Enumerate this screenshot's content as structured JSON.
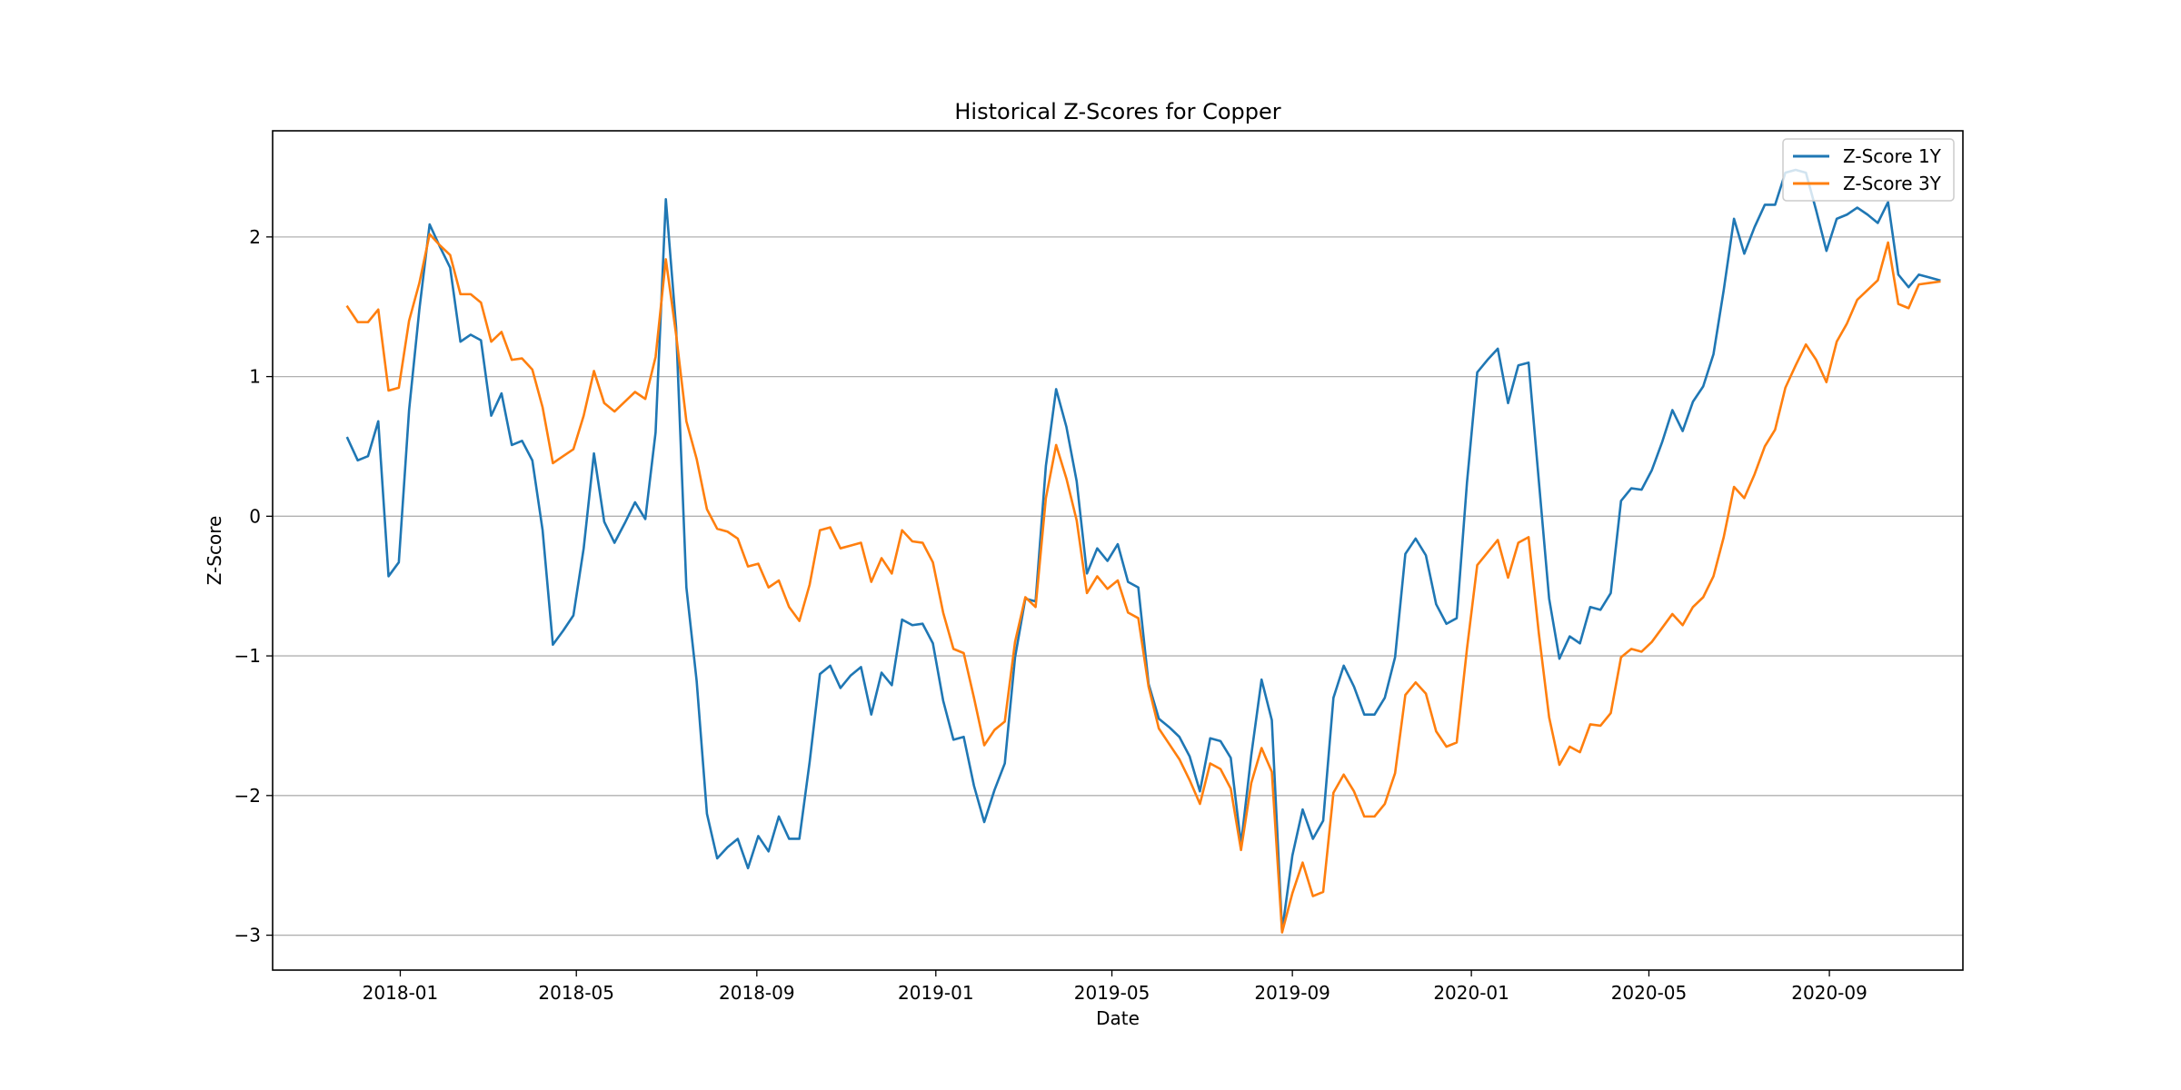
{
  "chart_data": {
    "type": "line",
    "title": "Historical Z-Scores for Copper",
    "xlabel": "Date",
    "ylabel": "Z-Score",
    "xlim": [
      "2017-10-06",
      "2020-12-01"
    ],
    "ylim": [
      -3.25,
      2.76
    ],
    "x_ticks": [
      "2018-01",
      "2018-05",
      "2018-09",
      "2019-01",
      "2019-05",
      "2019-09",
      "2020-01",
      "2020-05",
      "2020-09"
    ],
    "y_ticks": [
      "2",
      "1",
      "0",
      "−1",
      "−2",
      "−3"
    ],
    "y_tick_values": [
      2,
      1,
      0,
      -1,
      -2,
      -3
    ],
    "grid": "horizontal",
    "legend_position": "top-right",
    "x_start": "2017-11-26",
    "x_step_days": 7,
    "series": [
      {
        "name": "Z-Score 1Y",
        "color": "#1f77b4",
        "values": [
          0.56,
          0.4,
          0.43,
          0.68,
          -0.43,
          -0.33,
          0.76,
          1.48,
          2.09,
          1.93,
          1.78,
          1.25,
          1.3,
          1.26,
          0.72,
          0.88,
          0.51,
          0.54,
          0.4,
          -0.1,
          -0.92,
          -0.82,
          -0.71,
          -0.23,
          0.45,
          -0.04,
          -0.19,
          -0.05,
          0.1,
          -0.02,
          0.6,
          2.27,
          1.35,
          -0.51,
          -1.18,
          -2.13,
          -2.45,
          -2.37,
          -2.31,
          -2.52,
          -2.29,
          -2.4,
          -2.15,
          -2.31,
          -2.31,
          -1.76,
          -1.13,
          -1.07,
          -1.23,
          -1.14,
          -1.08,
          -1.42,
          -1.12,
          -1.21,
          -0.74,
          -0.78,
          -0.77,
          -0.91,
          -1.32,
          -1.6,
          -1.58,
          -1.93,
          -2.19,
          -1.96,
          -1.77,
          -1.01,
          -0.59,
          -0.61,
          0.36,
          0.91,
          0.64,
          0.25,
          -0.41,
          -0.23,
          -0.32,
          -0.2,
          -0.47,
          -0.51,
          -1.2,
          -1.45,
          -1.51,
          -1.58,
          -1.72,
          -1.97,
          -1.59,
          -1.61,
          -1.73,
          -2.35,
          -1.71,
          -1.17,
          -1.46,
          -2.97,
          -2.43,
          -2.1,
          -2.31,
          -2.18,
          -1.3,
          -1.07,
          -1.22,
          -1.42,
          -1.42,
          -1.3,
          -1.01,
          -0.27,
          -0.16,
          -0.28,
          -0.63,
          -0.77,
          -0.73,
          0.24,
          1.03,
          1.12,
          1.2,
          0.81,
          1.08,
          1.1,
          0.25,
          -0.59,
          -1.02,
          -0.86,
          -0.91,
          -0.65,
          -0.67,
          -0.55,
          0.11,
          0.2,
          0.19,
          0.33,
          0.53,
          0.76,
          0.61,
          0.82,
          0.93,
          1.16,
          1.62,
          2.13,
          1.88,
          2.07,
          2.23,
          2.23,
          2.46,
          2.48,
          2.46,
          2.19,
          1.9,
          2.13,
          2.16,
          2.21,
          2.16,
          2.1,
          2.25,
          1.73,
          1.64,
          1.73,
          1.71,
          1.69
        ]
      },
      {
        "name": "Z-Score 3Y",
        "color": "#ff7f0e",
        "values": [
          1.5,
          1.39,
          1.39,
          1.48,
          0.9,
          0.92,
          1.4,
          1.67,
          2.02,
          1.94,
          1.87,
          1.59,
          1.59,
          1.53,
          1.25,
          1.32,
          1.12,
          1.13,
          1.05,
          0.78,
          0.38,
          0.43,
          0.48,
          0.72,
          1.04,
          0.81,
          0.75,
          0.82,
          0.89,
          0.84,
          1.14,
          1.84,
          1.3,
          0.68,
          0.41,
          0.05,
          -0.09,
          -0.11,
          -0.16,
          -0.36,
          -0.34,
          -0.51,
          -0.46,
          -0.65,
          -0.75,
          -0.49,
          -0.1,
          -0.08,
          -0.23,
          -0.21,
          -0.19,
          -0.47,
          -0.3,
          -0.41,
          -0.1,
          -0.18,
          -0.19,
          -0.33,
          -0.69,
          -0.95,
          -0.98,
          -1.3,
          -1.64,
          -1.53,
          -1.47,
          -0.9,
          -0.58,
          -0.65,
          0.13,
          0.51,
          0.27,
          -0.03,
          -0.55,
          -0.43,
          -0.52,
          -0.46,
          -0.69,
          -0.73,
          -1.22,
          -1.52,
          -1.63,
          -1.74,
          -1.89,
          -2.06,
          -1.77,
          -1.81,
          -1.95,
          -2.39,
          -1.91,
          -1.66,
          -1.83,
          -2.98,
          -2.7,
          -2.48,
          -2.72,
          -2.69,
          -1.98,
          -1.85,
          -1.97,
          -2.15,
          -2.15,
          -2.06,
          -1.84,
          -1.28,
          -1.19,
          -1.27,
          -1.54,
          -1.65,
          -1.62,
          -0.95,
          -0.35,
          -0.26,
          -0.17,
          -0.44,
          -0.19,
          -0.15,
          -0.84,
          -1.44,
          -1.78,
          -1.65,
          -1.69,
          -1.49,
          -1.5,
          -1.41,
          -1.01,
          -0.95,
          -0.97,
          -0.9,
          -0.8,
          -0.7,
          -0.78,
          -0.65,
          -0.58,
          -0.43,
          -0.15,
          0.21,
          0.13,
          0.3,
          0.5,
          0.62,
          0.92,
          1.08,
          1.23,
          1.12,
          0.96,
          1.25,
          1.38,
          1.55,
          1.62,
          1.69,
          1.96,
          1.52,
          1.49,
          1.66,
          1.67,
          1.68
        ]
      }
    ]
  }
}
